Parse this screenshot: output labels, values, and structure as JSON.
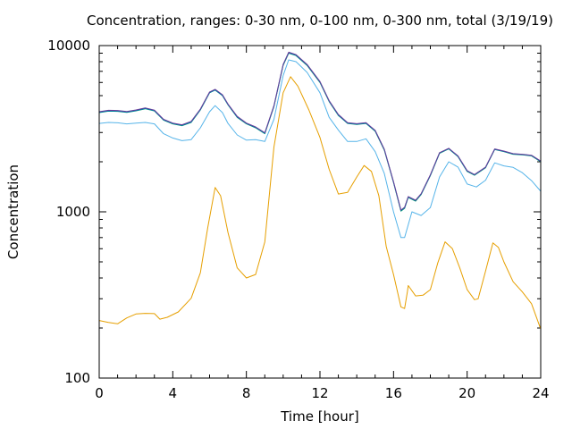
{
  "chart_data": {
    "type": "line",
    "title": "Concentration, ranges: 0-30 nm, 0-100 nm, 0-300 nm, total (3/19/19)",
    "xlabel": "Time [hour]",
    "ylabel": "Concentration",
    "xlim": [
      0,
      24
    ],
    "ylim": [
      100,
      10000
    ],
    "y_scale": "log",
    "grid": false,
    "legend": "none",
    "x_ticks": [
      0,
      4,
      8,
      12,
      16,
      20,
      24
    ],
    "x_tick_labels": [
      "0",
      "4",
      "8",
      "12",
      "16",
      "20",
      "24"
    ],
    "y_ticks": [
      100,
      1000,
      10000
    ],
    "y_tick_labels": [
      "100",
      "1000",
      "10000"
    ],
    "series": [
      {
        "color": "#e69f00",
        "points": [
          [
            0,
            222
          ],
          [
            0.5,
            216
          ],
          [
            1,
            212
          ],
          [
            1.5,
            230
          ],
          [
            2,
            243
          ],
          [
            2.5,
            245
          ],
          [
            3,
            244
          ],
          [
            3.3,
            226
          ],
          [
            3.7,
            232
          ],
          [
            4.3,
            250
          ],
          [
            5,
            302
          ],
          [
            5.5,
            430
          ],
          [
            5.9,
            800
          ],
          [
            6.3,
            1400
          ],
          [
            6.6,
            1250
          ],
          [
            7,
            750
          ],
          [
            7.5,
            460
          ],
          [
            8,
            400
          ],
          [
            8.5,
            420
          ],
          [
            9,
            660
          ],
          [
            9.5,
            2450
          ],
          [
            10,
            5200
          ],
          [
            10.4,
            6500
          ],
          [
            10.8,
            5700
          ],
          [
            11.4,
            4100
          ],
          [
            12,
            2800
          ],
          [
            12.5,
            1800
          ],
          [
            13,
            1280
          ],
          [
            13.5,
            1310
          ],
          [
            14,
            1620
          ],
          [
            14.4,
            1900
          ],
          [
            14.8,
            1750
          ],
          [
            15.2,
            1250
          ],
          [
            15.6,
            620
          ],
          [
            16,
            420
          ],
          [
            16.4,
            268
          ],
          [
            16.6,
            262
          ],
          [
            16.75,
            330
          ],
          [
            16.8,
            360
          ],
          [
            17.2,
            312
          ],
          [
            17.6,
            315
          ],
          [
            18,
            340
          ],
          [
            18.4,
            490
          ],
          [
            18.8,
            660
          ],
          [
            19.2,
            600
          ],
          [
            19.6,
            460
          ],
          [
            20,
            340
          ],
          [
            20.4,
            296
          ],
          [
            20.6,
            300
          ],
          [
            21,
            440
          ],
          [
            21.4,
            650
          ],
          [
            21.7,
            610
          ],
          [
            22,
            500
          ],
          [
            22.5,
            380
          ],
          [
            23,
            330
          ],
          [
            23.5,
            280
          ],
          [
            24,
            197
          ]
        ]
      },
      {
        "color": "#56b4e9",
        "points": [
          [
            0,
            3400
          ],
          [
            0.5,
            3450
          ],
          [
            1,
            3430
          ],
          [
            1.5,
            3380
          ],
          [
            2,
            3420
          ],
          [
            2.5,
            3450
          ],
          [
            3,
            3380
          ],
          [
            3.5,
            2950
          ],
          [
            4,
            2780
          ],
          [
            4.5,
            2680
          ],
          [
            5,
            2720
          ],
          [
            5.5,
            3200
          ],
          [
            6,
            4000
          ],
          [
            6.3,
            4350
          ],
          [
            6.7,
            3950
          ],
          [
            7,
            3400
          ],
          [
            7.5,
            2900
          ],
          [
            8,
            2700
          ],
          [
            8.5,
            2720
          ],
          [
            9,
            2650
          ],
          [
            9.5,
            3600
          ],
          [
            10,
            6600
          ],
          [
            10.3,
            8200
          ],
          [
            10.7,
            8000
          ],
          [
            11.3,
            6900
          ],
          [
            12,
            5200
          ],
          [
            12.5,
            3700
          ],
          [
            13,
            3100
          ],
          [
            13.5,
            2650
          ],
          [
            14,
            2650
          ],
          [
            14.5,
            2750
          ],
          [
            15,
            2300
          ],
          [
            15.5,
            1700
          ],
          [
            16,
            1000
          ],
          [
            16.4,
            700
          ],
          [
            16.6,
            700
          ],
          [
            17,
            1000
          ],
          [
            17.5,
            950
          ],
          [
            18,
            1060
          ],
          [
            18.5,
            1620
          ],
          [
            19,
            2000
          ],
          [
            19.5,
            1860
          ],
          [
            20,
            1470
          ],
          [
            20.5,
            1410
          ],
          [
            21,
            1550
          ],
          [
            21.5,
            1970
          ],
          [
            22,
            1890
          ],
          [
            22.5,
            1850
          ],
          [
            23,
            1720
          ],
          [
            23.5,
            1540
          ],
          [
            24,
            1330
          ]
        ]
      },
      {
        "color": "#009e73",
        "points": [
          [
            0,
            3950
          ],
          [
            0.5,
            4030
          ],
          [
            1,
            4020
          ],
          [
            1.5,
            3960
          ],
          [
            2,
            4050
          ],
          [
            2.5,
            4170
          ],
          [
            3,
            4040
          ],
          [
            3.5,
            3560
          ],
          [
            4,
            3380
          ],
          [
            4.5,
            3300
          ],
          [
            5,
            3450
          ],
          [
            5.5,
            4100
          ],
          [
            6,
            5200
          ],
          [
            6.3,
            5400
          ],
          [
            6.7,
            5000
          ],
          [
            7,
            4400
          ],
          [
            7.5,
            3700
          ],
          [
            8,
            3380
          ],
          [
            8.5,
            3200
          ],
          [
            9,
            2950
          ],
          [
            9.5,
            4300
          ],
          [
            10,
            7600
          ],
          [
            10.3,
            9000
          ],
          [
            10.7,
            8700
          ],
          [
            11.3,
            7600
          ],
          [
            12,
            6000
          ],
          [
            12.5,
            4600
          ],
          [
            13,
            3800
          ],
          [
            13.5,
            3400
          ],
          [
            14,
            3350
          ],
          [
            14.5,
            3400
          ],
          [
            15,
            3050
          ],
          [
            15.5,
            2350
          ],
          [
            16,
            1500
          ],
          [
            16.4,
            1010
          ],
          [
            16.6,
            1050
          ],
          [
            16.8,
            1220
          ],
          [
            17.2,
            1160
          ],
          [
            17.5,
            1270
          ],
          [
            18,
            1650
          ],
          [
            18.5,
            2250
          ],
          [
            19,
            2390
          ],
          [
            19.5,
            2150
          ],
          [
            20,
            1750
          ],
          [
            20.4,
            1660
          ],
          [
            21,
            1840
          ],
          [
            21.5,
            2370
          ],
          [
            22,
            2300
          ],
          [
            22.5,
            2220
          ],
          [
            23,
            2200
          ],
          [
            23.5,
            2170
          ],
          [
            24,
            2000
          ]
        ]
      },
      {
        "color": "#0072b2",
        "points": [
          [
            0,
            3970
          ],
          [
            0.5,
            4050
          ],
          [
            1,
            4040
          ],
          [
            1.5,
            3980
          ],
          [
            2,
            4070
          ],
          [
            2.5,
            4190
          ],
          [
            3,
            4060
          ],
          [
            3.5,
            3580
          ],
          [
            4,
            3400
          ],
          [
            4.5,
            3320
          ],
          [
            5,
            3470
          ],
          [
            5.5,
            4120
          ],
          [
            6,
            5220
          ],
          [
            6.3,
            5420
          ],
          [
            6.7,
            5020
          ],
          [
            7,
            4420
          ],
          [
            7.5,
            3720
          ],
          [
            8,
            3400
          ],
          [
            8.5,
            3220
          ],
          [
            9,
            2970
          ],
          [
            9.5,
            4320
          ],
          [
            10,
            7650
          ],
          [
            10.3,
            9060
          ],
          [
            10.7,
            8760
          ],
          [
            11.3,
            7650
          ],
          [
            12,
            6040
          ],
          [
            12.5,
            4630
          ],
          [
            13,
            3820
          ],
          [
            13.5,
            3420
          ],
          [
            14,
            3370
          ],
          [
            14.5,
            3420
          ],
          [
            15,
            3070
          ],
          [
            15.5,
            2370
          ],
          [
            16,
            1510
          ],
          [
            16.4,
            1020
          ],
          [
            16.6,
            1060
          ],
          [
            16.8,
            1230
          ],
          [
            17.2,
            1170
          ],
          [
            17.5,
            1280
          ],
          [
            18,
            1660
          ],
          [
            18.5,
            2260
          ],
          [
            19,
            2400
          ],
          [
            19.5,
            2160
          ],
          [
            20,
            1760
          ],
          [
            20.4,
            1670
          ],
          [
            21,
            1850
          ],
          [
            21.5,
            2380
          ],
          [
            22,
            2310
          ],
          [
            22.5,
            2230
          ],
          [
            23,
            2210
          ],
          [
            23.5,
            2180
          ],
          [
            24,
            2010
          ]
        ]
      },
      {
        "color": "#6a3d9a",
        "points": [
          [
            0,
            4000
          ],
          [
            0.5,
            4080
          ],
          [
            1,
            4070
          ],
          [
            1.5,
            4010
          ],
          [
            2,
            4100
          ],
          [
            2.5,
            4220
          ],
          [
            3,
            4090
          ],
          [
            3.5,
            3600
          ],
          [
            4,
            3420
          ],
          [
            4.5,
            3340
          ],
          [
            5,
            3500
          ],
          [
            5.5,
            4150
          ],
          [
            6,
            5260
          ],
          [
            6.3,
            5460
          ],
          [
            6.7,
            5060
          ],
          [
            7,
            4450
          ],
          [
            7.5,
            3750
          ],
          [
            8,
            3420
          ],
          [
            8.5,
            3240
          ],
          [
            9,
            2990
          ],
          [
            9.5,
            4350
          ],
          [
            10,
            7700
          ],
          [
            10.3,
            9120
          ],
          [
            10.7,
            8820
          ],
          [
            11.3,
            7700
          ],
          [
            12,
            6080
          ],
          [
            12.5,
            4660
          ],
          [
            13,
            3850
          ],
          [
            13.5,
            3440
          ],
          [
            14,
            3390
          ],
          [
            14.5,
            3440
          ],
          [
            15,
            3090
          ],
          [
            15.5,
            2380
          ],
          [
            16,
            1520
          ],
          [
            16.4,
            1025
          ],
          [
            16.6,
            1065
          ],
          [
            16.8,
            1235
          ],
          [
            17.2,
            1175
          ],
          [
            17.5,
            1285
          ],
          [
            18,
            1670
          ],
          [
            18.5,
            2270
          ],
          [
            19,
            2410
          ],
          [
            19.5,
            2170
          ],
          [
            20,
            1770
          ],
          [
            20.4,
            1675
          ],
          [
            21,
            1860
          ],
          [
            21.5,
            2390
          ],
          [
            22,
            2320
          ],
          [
            22.5,
            2240
          ],
          [
            23,
            2220
          ],
          [
            23.5,
            2190
          ],
          [
            24,
            2020
          ]
        ]
      }
    ]
  }
}
